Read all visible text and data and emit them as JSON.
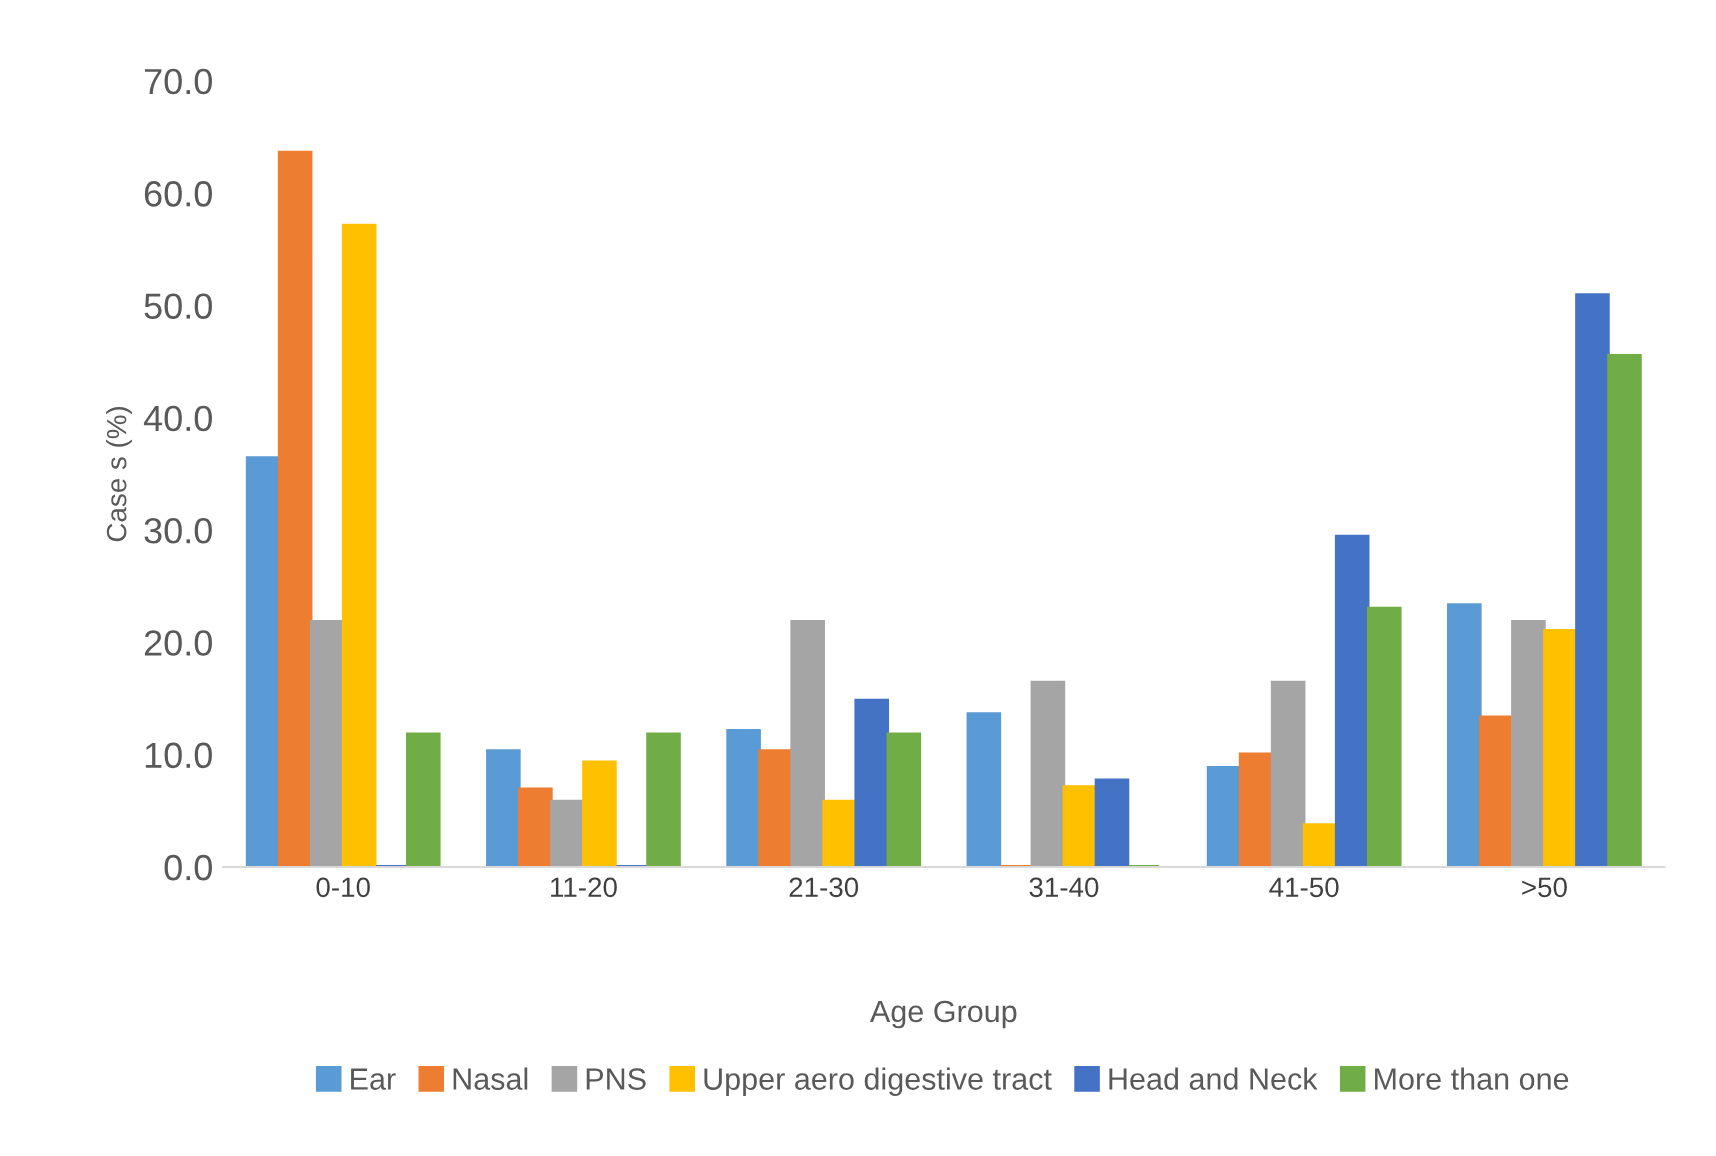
{
  "chart_data": {
    "type": "bar",
    "xlabel": "Age Group",
    "ylabel": "Case s (%)",
    "categories": [
      "0-10",
      "11-20",
      "21-30",
      "31-40",
      "41-50",
      ">50"
    ],
    "series": [
      {
        "name": "Ear",
        "color": "#5b9bd5",
        "values": [
          36.4,
          10.3,
          12.1,
          13.6,
          8.8,
          23.3
        ]
      },
      {
        "name": "Nasal",
        "color": "#ed7d31",
        "values": [
          63.6,
          6.9,
          10.3,
          0,
          10.0,
          13.3
        ]
      },
      {
        "name": "PNS",
        "color": "#a5a5a5",
        "values": [
          21.8,
          5.8,
          21.8,
          16.4,
          16.4,
          21.8
        ]
      },
      {
        "name": "Upper aero digestive tract",
        "color": "#ffc000",
        "values": [
          57.1,
          9.3,
          5.8,
          7.1,
          3.7,
          21.0
        ]
      },
      {
        "name": "Head and Neck",
        "color": "#4472c4",
        "values": [
          0,
          0,
          14.8,
          7.7,
          29.4,
          50.9
        ]
      },
      {
        "name": "More than one",
        "color": "#70ad47",
        "values": [
          11.8,
          11.8,
          11.8,
          0,
          23.0,
          45.5
        ]
      }
    ],
    "ylim": [
      0,
      70
    ],
    "yticks": [
      {
        "value": 0,
        "label": "0.0"
      },
      {
        "value": 10,
        "label": "10.0"
      },
      {
        "value": 20,
        "label": "20.0"
      },
      {
        "value": 30,
        "label": "30.0"
      },
      {
        "value": 40,
        "label": "40.0"
      },
      {
        "value": 50,
        "label": "50.0"
      },
      {
        "value": 60,
        "label": "60.0"
      },
      {
        "value": 70,
        "label": "70.0"
      }
    ],
    "grid": false,
    "legend": "bottom"
  }
}
